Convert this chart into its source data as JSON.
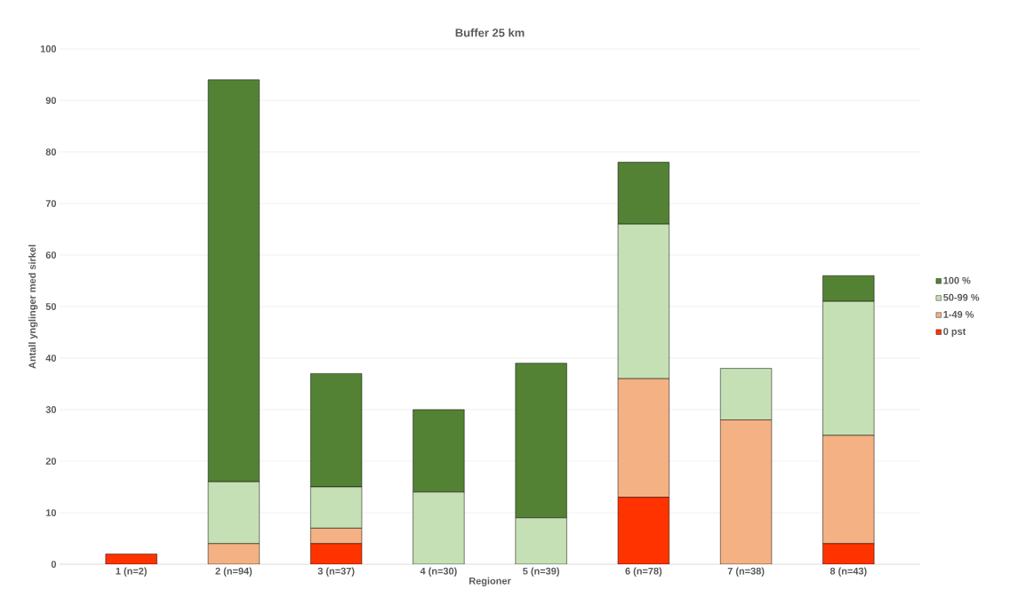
{
  "chart_data": {
    "type": "bar",
    "title": "Buffer 25 km",
    "xlabel": "Regioner",
    "ylabel": "Antall ynglinger med sirkel",
    "categories": [
      "1 (n=2)",
      "2 (n=94)",
      "3 (n=37)",
      "4 (n=30)",
      "5 (n=39)",
      "6 (n=78)",
      "7 (n=38)",
      "8 (n=43)"
    ],
    "stacked": true,
    "ylim": [
      0,
      100
    ],
    "yticks": [
      0,
      10,
      20,
      30,
      40,
      50,
      60,
      70,
      80,
      90,
      100
    ],
    "grid": "y",
    "legend": "right",
    "series": [
      {
        "name": "0 pst",
        "color": "#ff3300",
        "values": [
          2,
          0,
          4,
          0,
          0,
          13,
          0,
          4
        ]
      },
      {
        "name": "1-49 %",
        "color": "#f4b183",
        "values": [
          0,
          4,
          3,
          0,
          0,
          23,
          28,
          21
        ]
      },
      {
        "name": "50-99 %",
        "color": "#c5e0b4",
        "values": [
          0,
          12,
          8,
          14,
          9,
          30,
          10,
          26
        ]
      },
      {
        "name": "100 %",
        "color": "#548235",
        "values": [
          0,
          78,
          22,
          16,
          30,
          12,
          0,
          5
        ]
      }
    ]
  }
}
